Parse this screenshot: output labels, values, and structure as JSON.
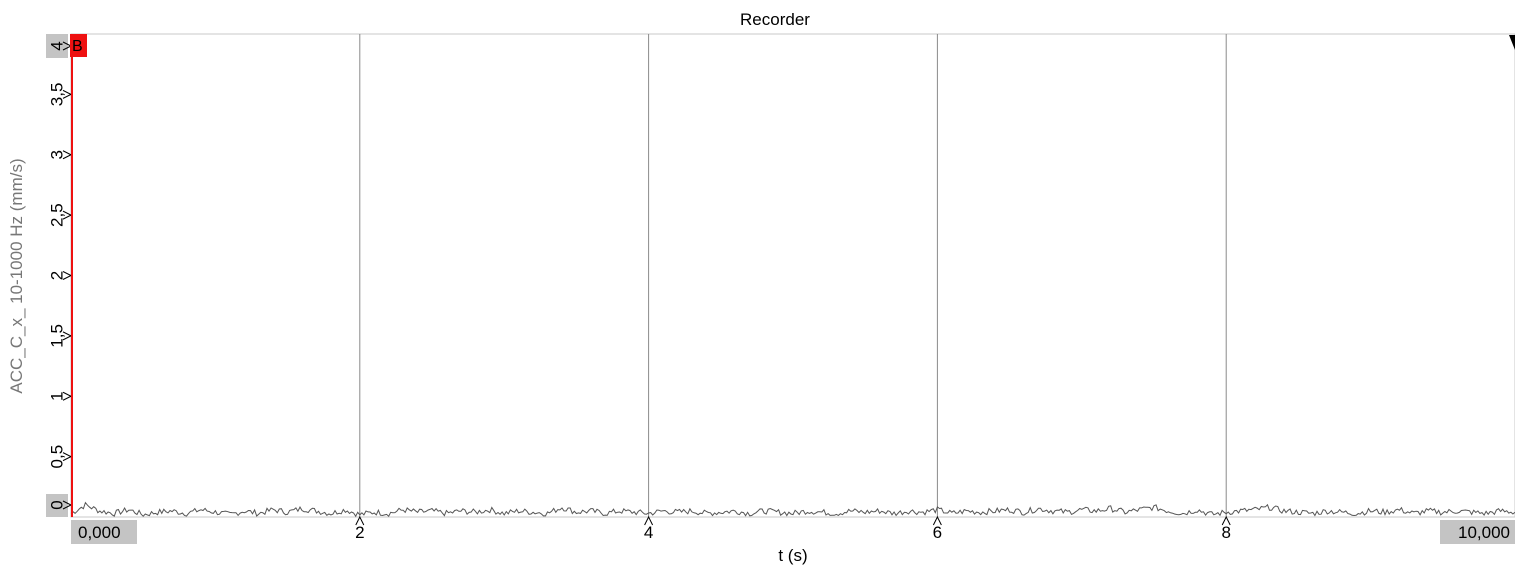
{
  "window": {
    "title": "Recorder"
  },
  "cursor": {
    "label": "B",
    "color": "#ee1111"
  },
  "range": {
    "start_label": "0,000",
    "end_label": "10,000"
  },
  "colors": {
    "signal": "#555555",
    "grid": "#8a8a8a",
    "label_bg": "#c4c4c4",
    "axis_text": "#777777"
  },
  "chart_data": {
    "type": "line",
    "title": "Recorder",
    "xlabel": "t (s)",
    "ylabel": "ACC_C_x_ 10-1000 Hz (mm/s)",
    "xlim": [
      0,
      10
    ],
    "ylim": [
      0,
      4
    ],
    "x_ticks": [
      {
        "value": 2,
        "label": "2"
      },
      {
        "value": 4,
        "label": "4"
      },
      {
        "value": 6,
        "label": "6"
      },
      {
        "value": 8,
        "label": "8"
      }
    ],
    "y_ticks": [
      {
        "value": 0,
        "label": "0"
      },
      {
        "value": 0.5,
        "label": "0,5"
      },
      {
        "value": 1,
        "label": "1"
      },
      {
        "value": 1.5,
        "label": "1,5"
      },
      {
        "value": 2,
        "label": "2"
      },
      {
        "value": 2.5,
        "label": "2,5"
      },
      {
        "value": 3,
        "label": "3"
      },
      {
        "value": 3.5,
        "label": "3,5"
      },
      {
        "value": 4,
        "label": "4"
      }
    ],
    "grid": "vertical",
    "series": [
      {
        "x": [
          0,
          0.1,
          0.2,
          0.3,
          0.4,
          0.5,
          0.6,
          0.7,
          0.8,
          0.9,
          1,
          1.1,
          1.2,
          1.3,
          1.4,
          1.5,
          1.6,
          1.7,
          1.8,
          1.9,
          2,
          2.1,
          2.2,
          2.3,
          2.4,
          2.5,
          2.6,
          2.7,
          2.8,
          2.9,
          3,
          3.1,
          3.2,
          3.3,
          3.4,
          3.5,
          3.6,
          3.7,
          3.8,
          3.9,
          4,
          4.1,
          4.2,
          4.3,
          4.4,
          4.5,
          4.6,
          4.7,
          4.8,
          4.9,
          5,
          5.1,
          5.2,
          5.3,
          5.4,
          5.5,
          5.6,
          5.7,
          5.8,
          5.9,
          6,
          6.1,
          6.2,
          6.3,
          6.4,
          6.5,
          6.6,
          6.7,
          6.8,
          6.9,
          7,
          7.1,
          7.2,
          7.3,
          7.4,
          7.5,
          7.6,
          7.7,
          7.8,
          7.9,
          8,
          8.1,
          8.2,
          8.3,
          8.4,
          8.5,
          8.6,
          8.7,
          8.8,
          8.9,
          9,
          9.1,
          9.2,
          9.3,
          9.4,
          9.5,
          9.6,
          9.7,
          9.8,
          9.9,
          10
        ],
        "values": [
          0.03,
          0.1,
          0.05,
          0.03,
          0.06,
          0.02,
          0.04,
          0.05,
          0.03,
          0.06,
          0.04,
          0.02,
          0.05,
          0.03,
          0.06,
          0.04,
          0.07,
          0.05,
          0.03,
          0.06,
          0.02,
          0.04,
          0.03,
          0.06,
          0.04,
          0.05,
          0.03,
          0.05,
          0.04,
          0.06,
          0.03,
          0.05,
          0.04,
          0.03,
          0.08,
          0.04,
          0.05,
          0.03,
          0.05,
          0.04,
          0.03,
          0.05,
          0.04,
          0.05,
          0.03,
          0.04,
          0.05,
          0.03,
          0.05,
          0.04,
          0.03,
          0.05,
          0.04,
          0.03,
          0.05,
          0.04,
          0.05,
          0.03,
          0.05,
          0.04,
          0.06,
          0.03,
          0.05,
          0.04,
          0.05,
          0.06,
          0.04,
          0.07,
          0.05,
          0.04,
          0.06,
          0.05,
          0.07,
          0.04,
          0.06,
          0.08,
          0.05,
          0.03,
          0.06,
          0.02,
          0.04,
          0.05,
          0.06,
          0.08,
          0.05,
          0.04,
          0.03,
          0.05,
          0.04,
          0.03,
          0.05,
          0.04,
          0.06,
          0.03,
          0.05,
          0.04,
          0.05,
          0.04,
          0.03,
          0.05,
          0.04
        ]
      }
    ]
  }
}
